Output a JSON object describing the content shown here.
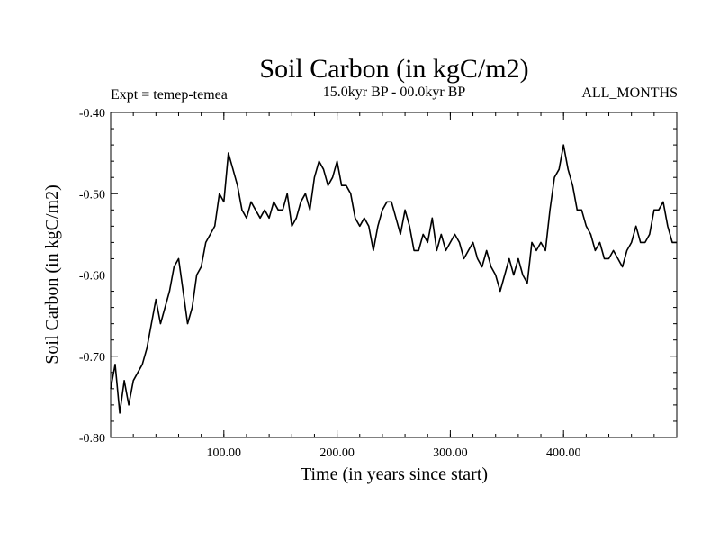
{
  "chart_data": {
    "type": "line",
    "title": "Soil Carbon (in kgC/m2)",
    "subtitle": "15.0kyr BP - 00.0kyr BP",
    "left_annotation": "Expt = temep-temea",
    "right_annotation": "ALL_MONTHS",
    "xlabel": "Time (in years since start)",
    "ylabel": "Soil Carbon (in kgC/m2)",
    "xlim": [
      0,
      500
    ],
    "ylim": [
      -0.8,
      -0.4
    ],
    "x_ticks": [
      100,
      200,
      300,
      400
    ],
    "x_tick_labels": [
      "100.00",
      "200.00",
      "300.00",
      "400.00"
    ],
    "y_ticks": [
      -0.8,
      -0.7,
      -0.6,
      -0.5,
      -0.4
    ],
    "y_tick_labels": [
      "-0.80",
      "-0.70",
      "-0.60",
      "-0.50",
      "-0.40"
    ],
    "grid": false,
    "series": [
      {
        "name": "Soil Carbon",
        "color": "#000000",
        "x": [
          0,
          4,
          8,
          12,
          16,
          20,
          24,
          28,
          32,
          36,
          40,
          44,
          48,
          52,
          56,
          60,
          64,
          68,
          72,
          76,
          80,
          84,
          88,
          92,
          96,
          100,
          104,
          108,
          112,
          116,
          120,
          124,
          128,
          132,
          136,
          140,
          144,
          148,
          152,
          156,
          160,
          164,
          168,
          172,
          176,
          180,
          184,
          188,
          192,
          196,
          200,
          204,
          208,
          212,
          216,
          220,
          224,
          228,
          232,
          236,
          240,
          244,
          248,
          252,
          256,
          260,
          264,
          268,
          272,
          276,
          280,
          284,
          288,
          292,
          296,
          300,
          304,
          308,
          312,
          316,
          320,
          324,
          328,
          332,
          336,
          340,
          344,
          348,
          352,
          356,
          360,
          364,
          368,
          372,
          376,
          380,
          384,
          388,
          392,
          396,
          400,
          404,
          408,
          412,
          416,
          420,
          424,
          428,
          432,
          436,
          440,
          444,
          448,
          452,
          456,
          460,
          464,
          468,
          472,
          476,
          480,
          484,
          488,
          492,
          496,
          500
        ],
        "values": [
          -0.74,
          -0.71,
          -0.77,
          -0.73,
          -0.76,
          -0.73,
          -0.72,
          -0.71,
          -0.69,
          -0.66,
          -0.63,
          -0.66,
          -0.64,
          -0.62,
          -0.59,
          -0.58,
          -0.62,
          -0.66,
          -0.64,
          -0.6,
          -0.59,
          -0.56,
          -0.55,
          -0.54,
          -0.5,
          -0.51,
          -0.45,
          -0.47,
          -0.49,
          -0.52,
          -0.53,
          -0.51,
          -0.52,
          -0.53,
          -0.52,
          -0.53,
          -0.51,
          -0.52,
          -0.52,
          -0.5,
          -0.54,
          -0.53,
          -0.51,
          -0.5,
          -0.52,
          -0.48,
          -0.46,
          -0.47,
          -0.49,
          -0.48,
          -0.46,
          -0.49,
          -0.49,
          -0.5,
          -0.53,
          -0.54,
          -0.53,
          -0.54,
          -0.57,
          -0.54,
          -0.52,
          -0.51,
          -0.51,
          -0.53,
          -0.55,
          -0.52,
          -0.54,
          -0.57,
          -0.57,
          -0.55,
          -0.56,
          -0.53,
          -0.57,
          -0.55,
          -0.57,
          -0.56,
          -0.55,
          -0.56,
          -0.58,
          -0.57,
          -0.56,
          -0.58,
          -0.59,
          -0.57,
          -0.59,
          -0.6,
          -0.62,
          -0.6,
          -0.58,
          -0.6,
          -0.58,
          -0.6,
          -0.61,
          -0.56,
          -0.57,
          -0.56,
          -0.57,
          -0.52,
          -0.48,
          -0.47,
          -0.44,
          -0.47,
          -0.49,
          -0.52,
          -0.52,
          -0.54,
          -0.55,
          -0.57,
          -0.56,
          -0.58,
          -0.58,
          -0.57,
          -0.58,
          -0.59,
          -0.57,
          -0.56,
          -0.54,
          -0.56,
          -0.56,
          -0.55,
          -0.52,
          -0.52,
          -0.51,
          -0.54,
          -0.56,
          -0.56
        ]
      }
    ]
  }
}
